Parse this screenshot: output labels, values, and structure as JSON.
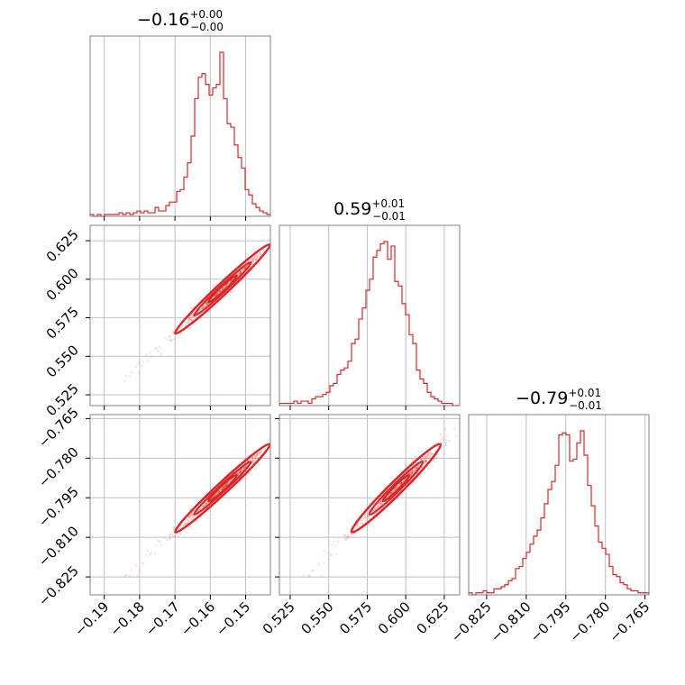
{
  "chart_data": {
    "type": "corner",
    "color": "#d62728",
    "grid": true,
    "parameters": [
      {
        "title": {
          "value": "−0.16",
          "plus": "+0.00",
          "minus": "−0.00"
        },
        "range": [
          -0.194,
          -0.143
        ],
        "ticks": [
          -0.19,
          -0.18,
          -0.17,
          -0.16,
          -0.15
        ],
        "tick_labels": [
          "−0.19",
          "−0.18",
          "−0.17",
          "−0.16",
          "−0.15"
        ],
        "hist_bins": [
          -0.194,
          -0.143,
          50
        ],
        "hist_counts": [
          1,
          0,
          1,
          0,
          1,
          1,
          1,
          1,
          2,
          1,
          2,
          1,
          2,
          3,
          2,
          3,
          2,
          2,
          5,
          3,
          3,
          6,
          8,
          8,
          14,
          15,
          22,
          30,
          45,
          66,
          78,
          80,
          74,
          68,
          72,
          74,
          92,
          66,
          52,
          50,
          40,
          33,
          27,
          15,
          12,
          7,
          5,
          3,
          2,
          1
        ]
      },
      {
        "title": {
          "value": "0.59",
          "plus": "+0.01",
          "minus": "−0.01"
        },
        "range": [
          0.518,
          0.635
        ],
        "ticks": [
          0.525,
          0.55,
          0.575,
          0.6,
          0.625
        ],
        "tick_labels": [
          "0.525",
          "0.550",
          "0.575",
          "0.600",
          "0.625"
        ],
        "hist_bins": [
          0.518,
          0.635,
          50
        ],
        "hist_counts": [
          1,
          1,
          1,
          1,
          2,
          1,
          2,
          2,
          1,
          3,
          4,
          4,
          5,
          6,
          9,
          10,
          14,
          16,
          17,
          20,
          28,
          30,
          39,
          44,
          52,
          57,
          67,
          70,
          73,
          74,
          66,
          72,
          56,
          54,
          46,
          41,
          32,
          28,
          16,
          12,
          10,
          6,
          4,
          3,
          2,
          1,
          1,
          1,
          0,
          0
        ]
      },
      {
        "title": {
          "value": "−0.79",
          "plus": "+0.01",
          "minus": "−0.01"
        },
        "range": [
          -0.8318,
          -0.7635
        ],
        "ticks": [
          -0.825,
          -0.81,
          -0.795,
          -0.78,
          -0.765
        ],
        "tick_labels": [
          "−0.825",
          "−0.810",
          "−0.795",
          "−0.780",
          "−0.765"
        ],
        "hist_bins": [
          -0.8318,
          -0.7635,
          50
        ],
        "hist_counts": [
          1,
          0,
          1,
          1,
          2,
          1,
          1,
          3,
          3,
          4,
          5,
          7,
          8,
          13,
          14,
          18,
          21,
          25,
          29,
          32,
          38,
          45,
          52,
          56,
          64,
          79,
          80,
          79,
          66,
          67,
          75,
          81,
          69,
          54,
          44,
          34,
          26,
          23,
          20,
          14,
          10,
          9,
          6,
          5,
          3,
          2,
          2,
          1,
          1,
          1
        ]
      }
    ],
    "pairs": [
      {
        "row": 1,
        "col": 0,
        "x": "param0",
        "y": "param1"
      },
      {
        "row": 2,
        "col": 0,
        "x": "param0",
        "y": "param2"
      },
      {
        "row": 2,
        "col": 1,
        "x": "param1",
        "y": "param2"
      }
    ]
  }
}
